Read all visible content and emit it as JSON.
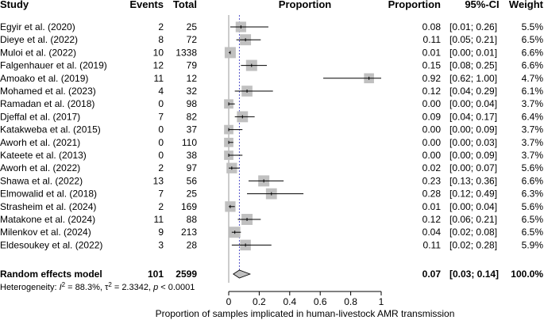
{
  "chart_data": {
    "type": "forest",
    "headers": {
      "study": "Study",
      "events": "Events",
      "total": "Total",
      "proportion_plot": "Proportion",
      "proportion": "Proportion",
      "ci": "95%-CI",
      "weight": "Weight"
    },
    "studies": [
      {
        "name": "Egyir et al. (2020)",
        "events": "2",
        "total": "25",
        "est": 0.08,
        "lo": 0.01,
        "hi": 0.26,
        "prop": "0.08",
        "ci": "[0.01; 0.26]",
        "weight": "5.5%",
        "w": 5.5
      },
      {
        "name": "Dieye et al. (2022)",
        "events": "8",
        "total": "72",
        "est": 0.11,
        "lo": 0.05,
        "hi": 0.21,
        "prop": "0.11",
        "ci": "[0.05; 0.21]",
        "weight": "6.5%",
        "w": 6.5
      },
      {
        "name": "Muloi et al. (2022)",
        "events": "10",
        "total": "1338",
        "est": 0.01,
        "lo": 0.0,
        "hi": 0.01,
        "prop": "0.01",
        "ci": "[0.00; 0.01]",
        "weight": "6.6%",
        "w": 6.6
      },
      {
        "name": "Falgenhauer et al. (2019)",
        "events": "12",
        "total": "79",
        "est": 0.15,
        "lo": 0.08,
        "hi": 0.25,
        "prop": "0.15",
        "ci": "[0.08; 0.25]",
        "weight": "6.6%",
        "w": 6.6
      },
      {
        "name": "Amoako et al. (2019)",
        "events": "11",
        "total": "12",
        "est": 0.92,
        "lo": 0.62,
        "hi": 1.0,
        "prop": "0.92",
        "ci": "[0.62; 1.00]",
        "weight": "4.7%",
        "w": 4.7
      },
      {
        "name": "Mohamed et al. (2023)",
        "events": "4",
        "total": "32",
        "est": 0.12,
        "lo": 0.04,
        "hi": 0.29,
        "prop": "0.12",
        "ci": "[0.04; 0.29]",
        "weight": "6.1%",
        "w": 6.1
      },
      {
        "name": "Ramadan et al. (2018)",
        "events": "0",
        "total": "98",
        "est": 0.0,
        "lo": 0.0,
        "hi": 0.04,
        "prop": "0.00",
        "ci": "[0.00; 0.04]",
        "weight": "3.7%",
        "w": 3.7
      },
      {
        "name": "Djeffal et al. (2017)",
        "events": "7",
        "total": "82",
        "est": 0.09,
        "lo": 0.04,
        "hi": 0.17,
        "prop": "0.09",
        "ci": "[0.04; 0.17]",
        "weight": "6.4%",
        "w": 6.4
      },
      {
        "name": "Katakweba et al. (2015)",
        "events": "0",
        "total": "37",
        "est": 0.0,
        "lo": 0.0,
        "hi": 0.09,
        "prop": "0.00",
        "ci": "[0.00; 0.09]",
        "weight": "3.7%",
        "w": 3.7
      },
      {
        "name": "Aworh et al. (2021)",
        "events": "0",
        "total": "110",
        "est": 0.0,
        "lo": 0.0,
        "hi": 0.03,
        "prop": "0.00",
        "ci": "[0.00; 0.03]",
        "weight": "3.7%",
        "w": 3.7
      },
      {
        "name": "Kateete et al. (2013)",
        "events": "0",
        "total": "38",
        "est": 0.0,
        "lo": 0.0,
        "hi": 0.09,
        "prop": "0.00",
        "ci": "[0.00; 0.09]",
        "weight": "3.7%",
        "w": 3.7
      },
      {
        "name": "Aworh et al. (2022)",
        "events": "2",
        "total": "97",
        "est": 0.02,
        "lo": 0.0,
        "hi": 0.07,
        "prop": "0.02",
        "ci": "[0.00; 0.07]",
        "weight": "5.6%",
        "w": 5.6
      },
      {
        "name": "Shawa et al. (2022)",
        "events": "13",
        "total": "56",
        "est": 0.23,
        "lo": 0.13,
        "hi": 0.36,
        "prop": "0.23",
        "ci": "[0.13; 0.36]",
        "weight": "6.6%",
        "w": 6.6
      },
      {
        "name": "Elmowalid et al. (2018)",
        "events": "7",
        "total": "25",
        "est": 0.28,
        "lo": 0.12,
        "hi": 0.49,
        "prop": "0.28",
        "ci": "[0.12; 0.49]",
        "weight": "6.3%",
        "w": 6.3
      },
      {
        "name": "Strasheim et al. (2024)",
        "events": "2",
        "total": "169",
        "est": 0.01,
        "lo": 0.0,
        "hi": 0.04,
        "prop": "0.01",
        "ci": "[0.00; 0.04]",
        "weight": "5.6%",
        "w": 5.6
      },
      {
        "name": "Matakone et al. (2024)",
        "events": "11",
        "total": "88",
        "est": 0.12,
        "lo": 0.06,
        "hi": 0.21,
        "prop": "0.12",
        "ci": "[0.06; 0.21]",
        "weight": "6.5%",
        "w": 6.5
      },
      {
        "name": "Milenkov et al. (2024)",
        "events": "9",
        "total": "213",
        "est": 0.04,
        "lo": 0.02,
        "hi": 0.08,
        "prop": "0.04",
        "ci": "[0.02; 0.08]",
        "weight": "6.5%",
        "w": 6.5
      },
      {
        "name": "Eldesoukey et al. (2022)",
        "events": "3",
        "total": "28",
        "est": 0.11,
        "lo": 0.02,
        "hi": 0.28,
        "prop": "0.11",
        "ci": "[0.02; 0.28]",
        "weight": "5.9%",
        "w": 5.9
      }
    ],
    "pooled": {
      "name": "Random effects model",
      "events": "101",
      "total": "2599",
      "est": 0.07,
      "lo": 0.03,
      "hi": 0.14,
      "prop": "0.07",
      "ci": "[0.03; 0.14]",
      "weight": "100.0%"
    },
    "heterogeneity": {
      "prefix": "Heterogeneity: ",
      "i2_sym": "I",
      "i2_sup": "2",
      "i2_val": " = 88.3%, ",
      "tau2_sym": "τ",
      "tau2_sup": "2",
      "tau2_val": " = 2.3342, ",
      "p_sym": "p",
      "p_val": " < 0.0001"
    },
    "x_ticks": [
      "0",
      "0.2",
      "0.4",
      "0.6",
      "0.8",
      "1"
    ],
    "x_tick_values": [
      0,
      0.2,
      0.4,
      0.6,
      0.8,
      1
    ],
    "xlim": [
      0,
      1
    ],
    "xlabel": "Proportion of samples implicated in human-livestock AMR transmission",
    "colors": {
      "box": "#c0c0c0",
      "line": "#000000",
      "pooled_fill": "#c0c0c0",
      "ref_line": "#5555cc"
    }
  }
}
